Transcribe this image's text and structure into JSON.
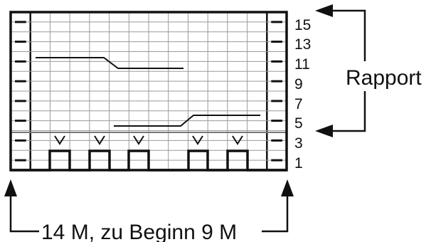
{
  "row_numbers": [
    "15",
    "13",
    "11",
    "9",
    "7",
    "5",
    "3",
    "1"
  ],
  "rapport_label": "Rapport",
  "width_label": "14 M, zu Beginn 9 M",
  "symbols": {
    "edge_stitch": "dash",
    "decrease_marker": "v-mark"
  }
}
